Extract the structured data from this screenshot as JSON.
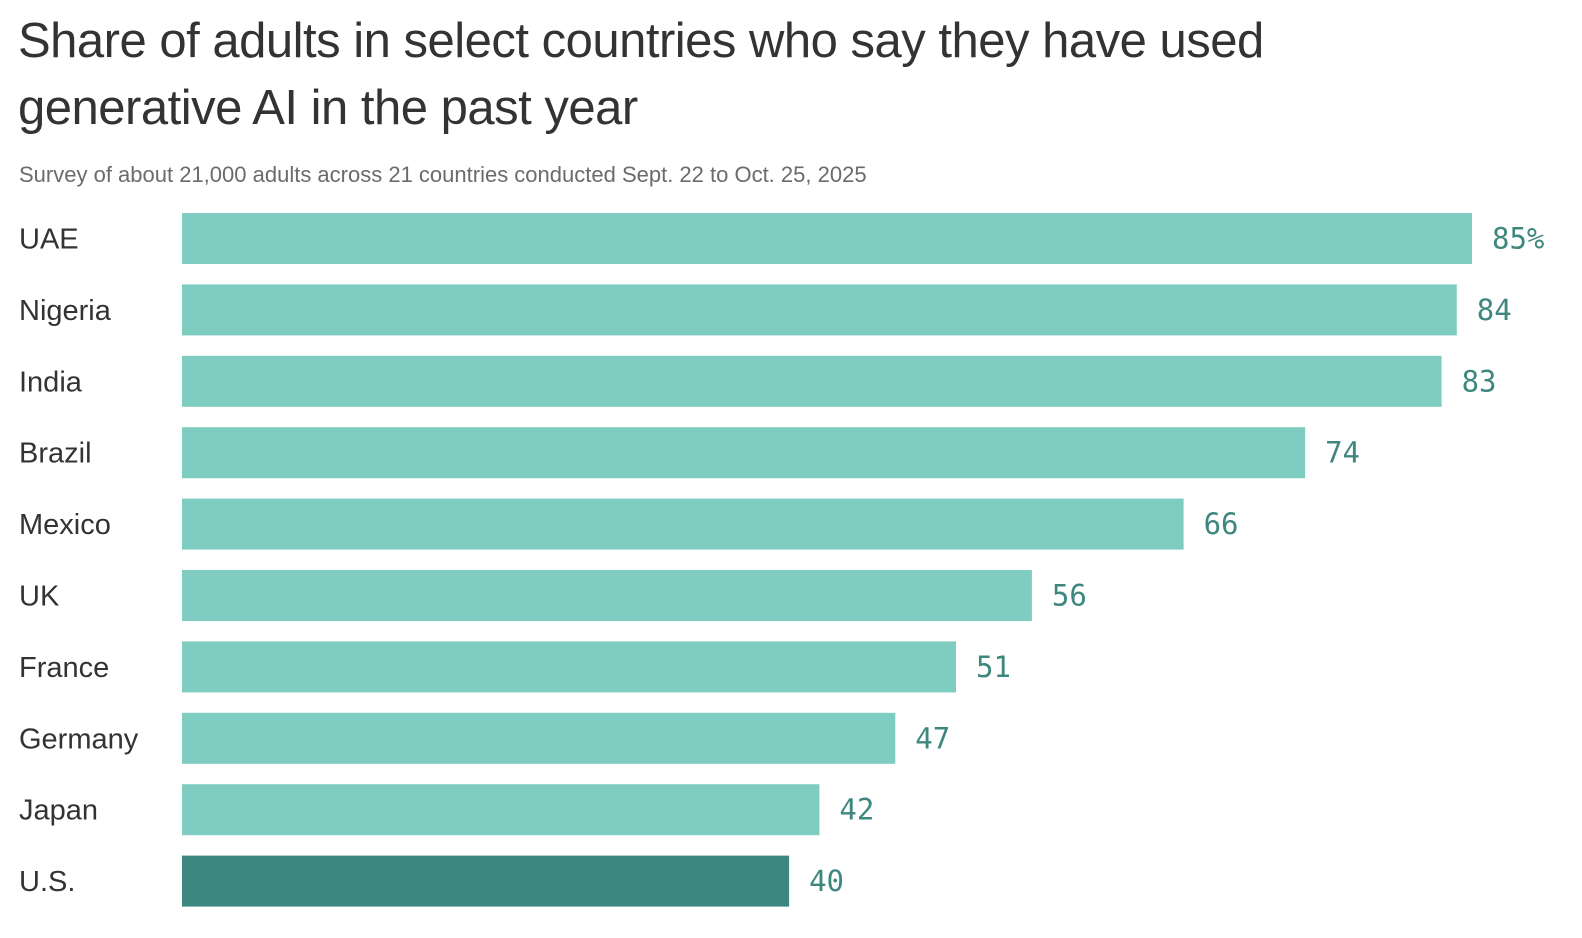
{
  "title": "Share of adults in select countries who say they have used generative AI in the past year",
  "subtitle": "Survey of about 21,000 adults across 21 countries conducted Sept. 22 to Oct. 25, 2025",
  "colors": {
    "bar": "#7ecdc0",
    "highlight_bar": "#3e877f",
    "value_text": "#3e877f",
    "label_text": "#333333"
  },
  "chart_data": {
    "type": "bar",
    "orientation": "horizontal",
    "title": "Share of adults in select countries who say they have used generative AI in the past year",
    "subtitle": "Survey of about 21,000 adults across 21 countries conducted Sept. 22 to Oct. 25, 2025",
    "xlabel": "",
    "ylabel": "",
    "grid": false,
    "legend": "none",
    "xlim": [
      0,
      85
    ],
    "categories": [
      "UAE",
      "Nigeria",
      "India",
      "Brazil",
      "Mexico",
      "UK",
      "France",
      "Germany",
      "Japan",
      "U.S."
    ],
    "values": [
      85,
      84,
      83,
      74,
      66,
      56,
      51,
      47,
      42,
      40
    ],
    "value_labels": [
      "85%",
      "84",
      "83",
      "74",
      "66",
      "56",
      "51",
      "47",
      "42",
      "40"
    ],
    "highlighted_category": "U.S."
  }
}
